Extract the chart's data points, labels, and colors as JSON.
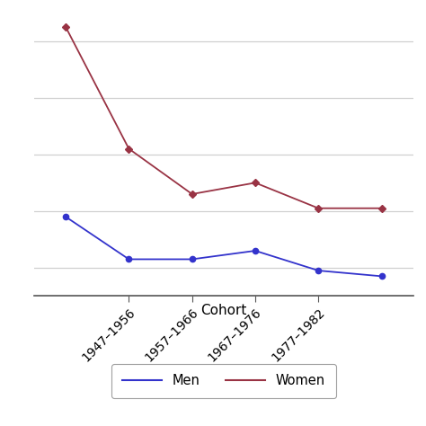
{
  "x_positions": [
    0,
    1,
    2,
    3,
    4,
    5
  ],
  "men_values": [
    19.8,
    18.3,
    18.3,
    18.6,
    17.9,
    17.7
  ],
  "women_values": [
    26.5,
    22.2,
    20.6,
    21.0,
    20.1,
    20.1
  ],
  "men_color": "#3333cc",
  "women_color": "#993344",
  "xlabel": "Cohort",
  "ylim": [
    17.0,
    27.0
  ],
  "xlim": [
    -0.5,
    5.5
  ],
  "grid_color": "#d0d0d0",
  "bg_color": "#ffffff",
  "legend_men": "Men",
  "legend_women": "Women",
  "yticks": [
    18,
    20,
    22,
    24,
    26
  ],
  "xtick_positions": [
    1,
    2,
    3,
    4
  ],
  "xtick_labels": [
    "1947–1956",
    "1957–1966",
    "1967–1976",
    "1977–1982"
  ]
}
